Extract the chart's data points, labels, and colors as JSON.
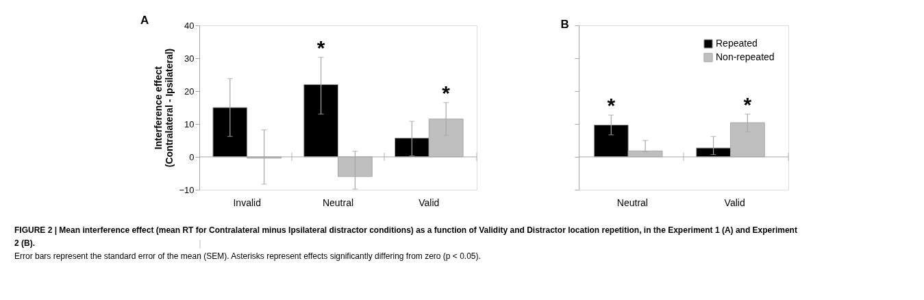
{
  "chart_data": [
    {
      "type": "bar",
      "title": "A",
      "ylabel": "Interference effect\n(Contralateral - Ipsilateral)",
      "categories": [
        "Invalid",
        "Neutral",
        "Valid"
      ],
      "series": [
        {
          "color": "#000000",
          "values": [
            15,
            22,
            5.7
          ],
          "errors": [
            [
              6.2,
              23.8
            ],
            [
              13,
              30.3
            ],
            [
              0.3,
              10.8
            ]
          ],
          "value_labels": [
            null,
            "*",
            null
          ]
        },
        {
          "color": "#bfbfbf",
          "values": [
            -0.4,
            -6,
            11.5
          ],
          "errors": [
            [
              -8.3,
              8.2
            ],
            [
              -9.8,
              1.7
            ],
            [
              6.5,
              16.5
            ]
          ],
          "value_labels": [
            null,
            null,
            "*"
          ]
        }
      ],
      "ylim": [
        -10,
        40
      ],
      "yticks": [
        -10,
        0,
        10,
        20,
        30,
        40
      ],
      "grid": false,
      "legend": false,
      "ref_lines": [
        {
          "axis": "y",
          "value": 0,
          "color": "#a6a6a6"
        }
      ],
      "annotations": [
        "FIGURE 2 | Mean interference effect (mean RT for Contralateral minus Ipsilateral distractor conditions) as a function of Validity and Distractor location repetition, in the Experiment 1 (A) and Experiment 2 (B).",
        "Error bars represent the standard error of the mean (SEM). Asterisks represent effects significantly differing from zero (p < 0.05)."
      ]
    },
    {
      "type": "bar",
      "title": "B",
      "categories": [
        "Neutral",
        "Valid"
      ],
      "series": [
        {
          "name": "Repeated",
          "color": "#000000",
          "values": [
            9.7,
            2.7
          ],
          "errors": [
            [
              6.7,
              12.7
            ],
            [
              0.7,
              6.2
            ]
          ],
          "value_labels": [
            "*",
            null
          ]
        },
        {
          "name": "Non-repeated",
          "color": "#bfbfbf",
          "values": [
            1.8,
            10.4
          ],
          "errors": [
            [
              1.6,
              5.0
            ],
            [
              7.6,
              13.0
            ]
          ],
          "value_labels": [
            null,
            "*"
          ]
        }
      ],
      "ylim": [
        -10,
        40
      ],
      "yticks": [
        -10,
        0,
        10,
        20,
        30,
        40
      ],
      "grid": false,
      "legend": "top right",
      "tick_labels": "x",
      "ref_lines": [
        {
          "axis": "y",
          "value": 0,
          "color": "#a6a6a6"
        }
      ]
    }
  ]
}
